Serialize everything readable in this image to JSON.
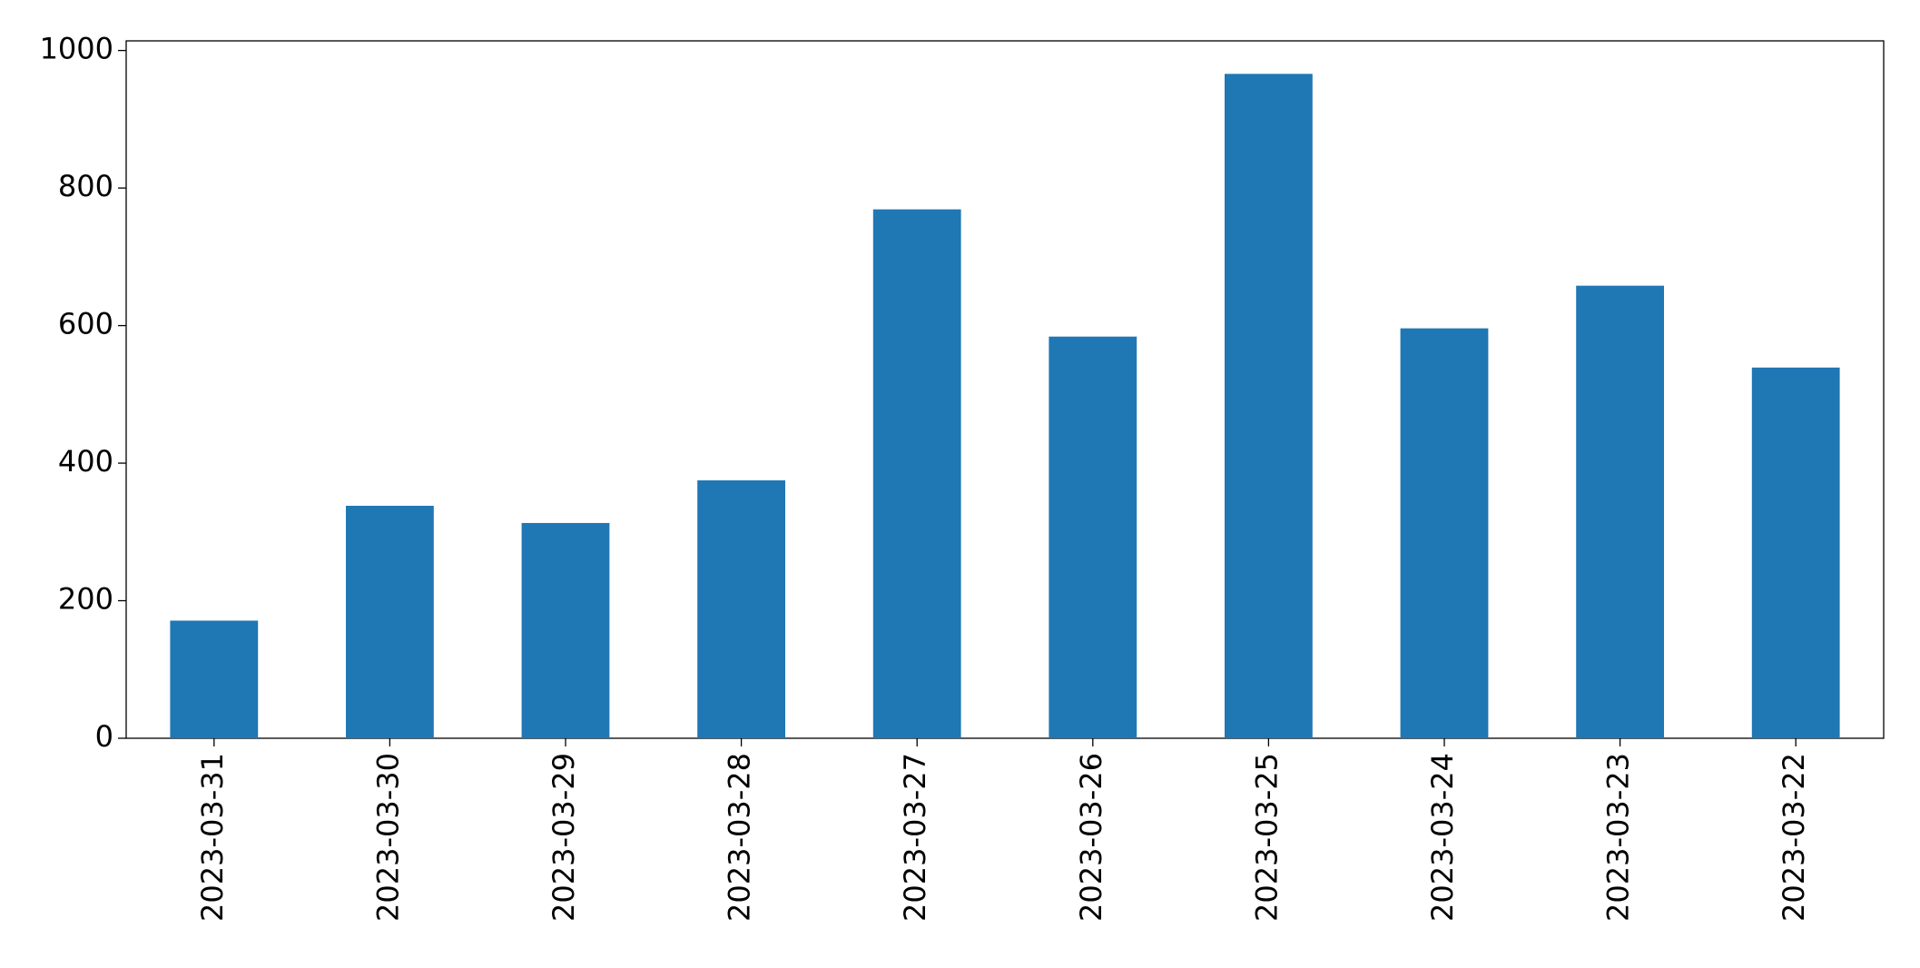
{
  "chart_data": {
    "type": "bar",
    "categories": [
      "2023-03-31",
      "2023-03-30",
      "2023-03-29",
      "2023-03-28",
      "2023-03-27",
      "2023-03-26",
      "2023-03-25",
      "2023-03-24",
      "2023-03-23",
      "2023-03-22"
    ],
    "values": [
      171,
      338,
      313,
      375,
      769,
      584,
      966,
      596,
      658,
      539
    ],
    "color": "#1f77b4",
    "ylim": [
      0,
      1014
    ],
    "yticks": [
      0,
      200,
      400,
      600,
      800,
      1000
    ],
    "grid": false
  }
}
